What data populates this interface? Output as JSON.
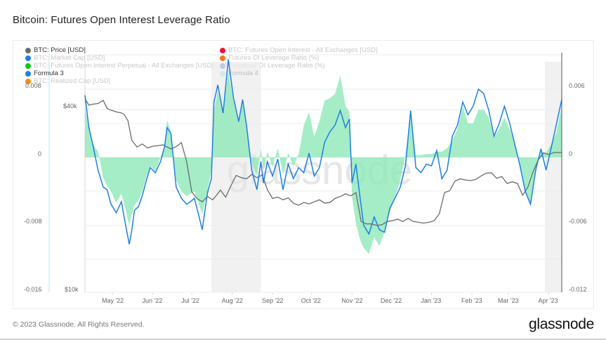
{
  "title": "Bitcoin: Futures Open Interest Leverage Ratio",
  "footer": {
    "copyright": "© 2023 Glassnode. All Rights Reserved.",
    "brand": "glassnode"
  },
  "watermark": "glassnode",
  "colors": {
    "price": "#6b6b6b",
    "formula3": "#1e7fe6",
    "formula4": "#8ee8b8",
    "market_cap": "#1e7fe6",
    "oi_all": "#f0123c",
    "oi_perp": "#18c41a",
    "fut_oi_lev": "#f5731c",
    "perp_oi_lev": "#5a5ab8",
    "realized_cap": "#f58c1c"
  },
  "chart_data": {
    "type": "line",
    "title": "Bitcoin: Futures Open Interest Leverage Ratio",
    "legend_placement": "top-left",
    "legend": [
      {
        "label": "BTC: Price [USD]",
        "color_key": "price",
        "active": true
      },
      {
        "label": "BTC: Market Cap [USD]",
        "color_key": "market_cap",
        "active": false
      },
      {
        "label": "BTC: Futures Open Interest Perpetual - All Exchanges [USD]",
        "color_key": "oi_perp",
        "active": false
      },
      {
        "label": "Formula 3",
        "color_key": "formula3",
        "active": true
      },
      {
        "label": "BTC: Realized Cap [USD]",
        "color_key": "realized_cap",
        "active": false
      },
      {
        "label": "BTC: Futures Open Interest - All Exchanges [USD]",
        "color_key": "oi_all",
        "active": false
      },
      {
        "label": "Futures OI Leverage Ratio (%)",
        "color_key": "fut_oi_lev",
        "active": false
      },
      {
        "label": "Perpetual OI Leverage Ratio (%)",
        "color_key": "perp_oi_lev",
        "active": false
      },
      {
        "label": "Formula 4",
        "color_key": "formula4",
        "active": true
      }
    ],
    "x_axis": {
      "unit": "days since 2022-04-10",
      "range": [
        0,
        366
      ],
      "ticks": [
        {
          "label": "May '22",
          "x": 21
        },
        {
          "label": "Jun '22",
          "x": 52
        },
        {
          "label": "Jul '22",
          "x": 82
        },
        {
          "label": "Aug '22",
          "x": 113
        },
        {
          "label": "Sep '22",
          "x": 144
        },
        {
          "label": "Oct '22",
          "x": 174
        },
        {
          "label": "Nov '22",
          "x": 205
        },
        {
          "label": "Dec '22",
          "x": 235
        },
        {
          "label": "Jan '23",
          "x": 266
        },
        {
          "label": "Feb '23",
          "x": 297
        },
        {
          "label": "Mar '23",
          "x": 325
        },
        {
          "label": "Apr '23",
          "x": 356
        }
      ]
    },
    "y_axes": {
      "left": {
        "label": "Formula 3",
        "range": [
          -0.016,
          0.008
        ],
        "ticks": [
          "0.008",
          "0",
          "-0.008",
          "-0.016"
        ],
        "tick_values": [
          0.008,
          0,
          -0.008,
          -0.016
        ]
      },
      "price": {
        "label": "BTC: Price [USD]",
        "scale": "log",
        "range": [
          10000,
          48000
        ],
        "ticks": [
          "$40k",
          "$10k"
        ],
        "tick_values": [
          40000,
          10000
        ]
      },
      "right": {
        "label": "Formula 4",
        "range": [
          -0.012,
          0.006
        ],
        "ticks": [
          "0.006",
          "0",
          "-0.006",
          "-0.012"
        ],
        "tick_values": [
          0.006,
          0,
          -0.006,
          -0.012
        ]
      }
    },
    "grid": true,
    "shaded_ranges": [
      [
        97,
        135
      ],
      [
        353,
        366
      ]
    ],
    "series": [
      {
        "name": "BTC: Price [USD]",
        "axis": "price",
        "x": [
          0,
          3,
          6,
          10,
          14,
          17,
          20,
          24,
          28,
          30,
          33,
          36,
          40,
          44,
          48,
          52,
          56,
          60,
          63,
          66,
          70,
          74,
          78,
          82,
          86,
          90,
          94,
          98,
          101,
          104,
          108,
          112,
          116,
          120,
          124,
          128,
          132,
          136,
          140,
          144,
          148,
          152,
          156,
          160,
          164,
          168,
          172,
          176,
          180,
          184,
          188,
          192,
          196,
          200,
          204,
          208,
          212,
          216,
          220,
          224,
          228,
          232,
          236,
          240,
          244,
          248,
          252,
          256,
          260,
          264,
          268,
          272,
          276,
          280,
          284,
          288,
          292,
          296,
          300,
          304,
          308,
          312,
          316,
          320,
          324,
          328,
          332,
          336,
          340,
          344,
          348,
          352,
          356,
          360,
          366
        ],
        "y": [
          42500,
          40500,
          40800,
          41000,
          42000,
          39500,
          39000,
          38500,
          38200,
          37800,
          36000,
          31000,
          29500,
          30200,
          29300,
          29700,
          29800,
          30000,
          29500,
          29100,
          29600,
          30500,
          26500,
          21000,
          20000,
          19500,
          20300,
          19800,
          20500,
          21300,
          20200,
          22000,
          23800,
          23400,
          23200,
          24000,
          23400,
          23900,
          21400,
          20000,
          20200,
          19800,
          20100,
          19300,
          19000,
          19400,
          19200,
          19500,
          19800,
          19300,
          19400,
          20000,
          20300,
          20700,
          20400,
          20900,
          16800,
          16500,
          16500,
          16300,
          16400,
          16800,
          16900,
          17100,
          16800,
          17200,
          16800,
          16700,
          16600,
          16700,
          16900,
          17800,
          20900,
          21200,
          22800,
          23200,
          23000,
          22900,
          23100,
          23700,
          24200,
          24300,
          23300,
          23600,
          22400,
          22700,
          22400,
          20500,
          21800,
          24500,
          26800,
          28200,
          27900,
          28300,
          28300
        ]
      },
      {
        "name": "Formula 3",
        "axis": "left",
        "x": [
          0,
          3,
          6,
          10,
          14,
          17,
          20,
          24,
          28,
          31,
          34,
          36,
          38,
          41,
          44,
          47,
          50,
          54,
          58,
          61,
          63,
          66,
          70,
          74,
          78,
          81,
          84,
          87,
          90,
          94,
          97,
          99,
          102,
          106,
          110,
          114,
          118,
          121,
          124,
          128,
          132,
          135,
          137,
          140,
          144,
          148,
          152,
          156,
          160,
          164,
          168,
          172,
          176,
          180,
          184,
          188,
          192,
          196,
          200,
          203,
          205,
          208,
          211,
          214,
          218,
          222,
          226,
          230,
          234,
          238,
          242,
          246,
          250,
          254,
          258,
          262,
          266,
          270,
          274,
          278,
          282,
          286,
          290,
          294,
          298,
          302,
          306,
          310,
          314,
          318,
          322,
          326,
          330,
          334,
          338,
          342,
          346,
          350,
          354,
          358,
          362,
          366
        ],
        "y": [
          0.0073,
          0.0035,
          0.0015,
          -0.0015,
          -0.0035,
          -0.0038,
          -0.0055,
          -0.0065,
          -0.0052,
          -0.0078,
          -0.0102,
          -0.0085,
          -0.0062,
          -0.0058,
          -0.0045,
          -0.0028,
          -0.0012,
          -0.0018,
          -0.0005,
          0.0012,
          0.0035,
          0.0028,
          -0.0035,
          -0.0048,
          -0.0055,
          -0.0052,
          -0.0048,
          -0.0066,
          -0.0085,
          -0.0042,
          -0.0025,
          0.0065,
          0.0085,
          0.0052,
          0.0115,
          0.007,
          0.0042,
          0.0068,
          0.0038,
          -0.0015,
          -0.0038,
          -0.0005,
          -0.003,
          -0.0005,
          -0.0022,
          -0.0002,
          -0.0038,
          -0.0008,
          -0.0025,
          -0.0012,
          -0.0018,
          0.0005,
          -0.0022,
          -0.0012,
          0.0018,
          0.003,
          0.0038,
          0.0055,
          0.0035,
          0.0045,
          -0.003,
          -0.0008,
          -0.0045,
          -0.008,
          -0.009,
          -0.007,
          -0.0085,
          -0.0088,
          -0.006,
          -0.0048,
          -0.0035,
          -0.001,
          0.0055,
          -0.0012,
          -0.0018,
          -0.0008,
          -0.001,
          0.0008,
          -0.0025,
          -0.0015,
          0.0025,
          0.0038,
          0.0065,
          0.005,
          0.006,
          0.008,
          0.0075,
          0.0055,
          0.0025,
          0.004,
          0.006,
          0.004,
          0.0015,
          -0.001,
          -0.004,
          -0.0055,
          -0.0015,
          0.001,
          -0.0015,
          0.0012,
          0.004,
          0.0068
        ]
      },
      {
        "name": "Formula 4",
        "axis": "right",
        "type": "area",
        "x": [
          0,
          3,
          6,
          10,
          14,
          17,
          20,
          24,
          28,
          31,
          34,
          36,
          38,
          41,
          44,
          47,
          50,
          54,
          58,
          61,
          63,
          66,
          70,
          74,
          78,
          81,
          84,
          87,
          90,
          94,
          97,
          99,
          102,
          106,
          110,
          114,
          118,
          121,
          124,
          128,
          132,
          135,
          137,
          140,
          144,
          148,
          152,
          156,
          160,
          164,
          168,
          172,
          176,
          180,
          184,
          188,
          192,
          196,
          200,
          203,
          205,
          208,
          211,
          214,
          218,
          222,
          226,
          230,
          234,
          238,
          242,
          246,
          250,
          254,
          258,
          262,
          266,
          270,
          274,
          278,
          282,
          286,
          290,
          294,
          298,
          302,
          306,
          310,
          314,
          318,
          322,
          326,
          330,
          334,
          338,
          342,
          346,
          350,
          354,
          358,
          362,
          366
        ],
        "y": [
          0.0045,
          0.0025,
          0.0012,
          0.0005,
          -0.0018,
          -0.0025,
          -0.003,
          -0.004,
          -0.0032,
          -0.0045,
          -0.006,
          -0.005,
          -0.0042,
          -0.0038,
          -0.003,
          -0.0018,
          -0.0008,
          -0.0012,
          0.0,
          0.001,
          0.0033,
          0.0022,
          -0.002,
          -0.003,
          -0.0034,
          -0.0032,
          -0.003,
          -0.004,
          -0.005,
          -0.003,
          -0.001,
          0.004,
          0.0058,
          0.0042,
          0.0075,
          0.005,
          0.0032,
          0.0048,
          0.0028,
          -0.0005,
          -0.0016,
          0.0008,
          -0.0012,
          0.0005,
          -0.0008,
          0.0008,
          -0.0015,
          0.0004,
          -0.0008,
          0.0003,
          0.0028,
          0.004,
          0.0018,
          0.0032,
          0.005,
          0.0052,
          0.0056,
          0.0072,
          0.0045,
          0.004,
          -0.0035,
          -0.0058,
          -0.0072,
          -0.008,
          -0.0085,
          -0.007,
          -0.0078,
          -0.0065,
          -0.0048,
          -0.0035,
          -0.002,
          0.0002,
          0.0038,
          0.0002,
          0.0002,
          0.0003,
          0.0003,
          0.0005,
          0.0005,
          0.0008,
          0.0015,
          0.0025,
          0.0045,
          0.003,
          0.003,
          0.0042,
          0.0042,
          0.0035,
          0.0018,
          0.0025,
          0.0035,
          0.0025,
          0.0012,
          -0.001,
          -0.003,
          -0.004,
          -0.001,
          0.0005,
          0.0004,
          0.0012,
          0.0022,
          0.0045
        ]
      }
    ]
  }
}
